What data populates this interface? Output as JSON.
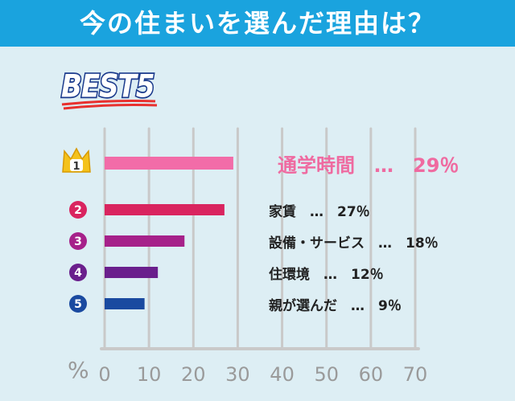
{
  "header": {
    "title": "今の住まいを選んだ理由は？"
  },
  "badge": {
    "label": "BEST5"
  },
  "chart_data": {
    "type": "bar",
    "orientation": "horizontal",
    "title": "今の住まいを選んだ理由は？",
    "xlabel": "%",
    "xlim": [
      0,
      70
    ],
    "xticks": [
      "0",
      "10",
      "20",
      "30",
      "40",
      "50",
      "60",
      "70"
    ],
    "grid": true,
    "ranks": [
      "1",
      "2",
      "3",
      "4",
      "5"
    ],
    "categories": [
      "通学時間",
      "家賃",
      "設備・サービス",
      "住環境",
      "親が選んだ"
    ],
    "values": [
      29,
      27,
      18,
      12,
      9
    ],
    "labels": [
      "通学時間　…　29％",
      "家賃　…　27％",
      "設備・サービス　…　18％",
      "住環境　…　12％",
      "親が選んだ　…　9％"
    ],
    "colors": [
      "#f26ca8",
      "#d9245f",
      "#a6218a",
      "#6a1f8c",
      "#1a4aa0"
    ],
    "header_color": "#1aa3de"
  }
}
